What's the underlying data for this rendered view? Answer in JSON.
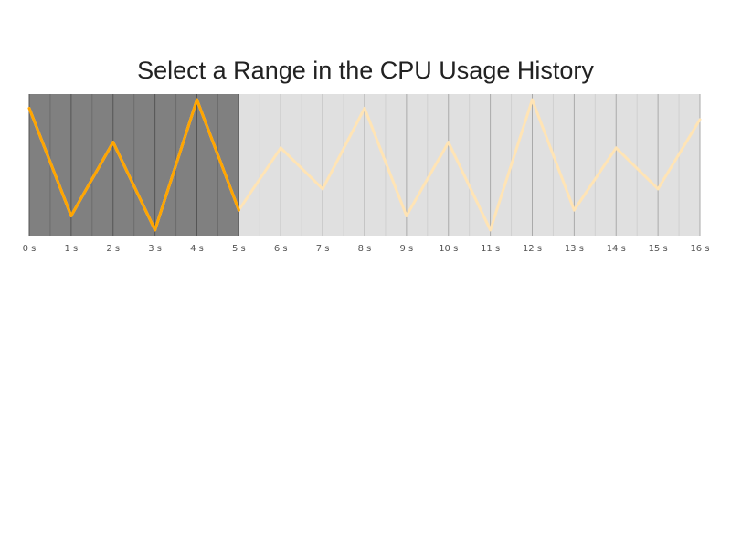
{
  "chart_data": {
    "type": "line",
    "title": "Select a Range in the CPU Usage History",
    "xlabel": "",
    "ylabel": "",
    "xlim": [
      0,
      16
    ],
    "ylim": [
      0,
      100
    ],
    "x": [
      0,
      1,
      2,
      3,
      4,
      5,
      6,
      7,
      8,
      9,
      10,
      11,
      12,
      13,
      14,
      15,
      16
    ],
    "tick_labels": [
      "0 s",
      "1 s",
      "2 s",
      "3 s",
      "4 s",
      "5 s",
      "6 s",
      "7 s",
      "8 s",
      "9 s",
      "10 s",
      "11 s",
      "12 s",
      "13 s",
      "14 s",
      "15 s",
      "16 s"
    ],
    "series": [
      {
        "name": "CPU Usage",
        "values": [
          90,
          14,
          66,
          4,
          96,
          18,
          62,
          33,
          90,
          14,
          66,
          4,
          96,
          18,
          62,
          33,
          82
        ]
      }
    ],
    "selection": {
      "start": 0,
      "end": 5
    },
    "colors": {
      "line": "#ffa500",
      "line_faded": "#ffe4b5",
      "plot_bg": "#e0e0e0",
      "selection_bg": "#808080",
      "grid_major": "#aaaaaa",
      "grid_minor": "#d0d0d0",
      "grid_major_selected": "#555555",
      "grid_minor_selected": "#6c6c6c"
    }
  }
}
